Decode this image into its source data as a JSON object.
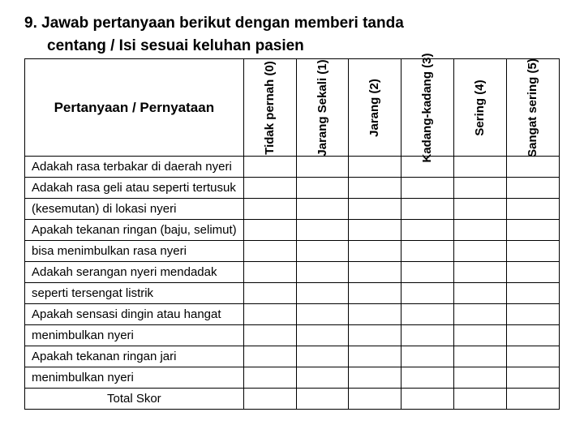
{
  "title": "9.  Jawab pertanyaan berikut dengan memberi tanda",
  "subtitle": "centang / Isi sesuai keluhan pasien",
  "questionHeader": "Pertanyaan / Pernyataan",
  "scales": [
    {
      "label": "Tidak pernah (0)"
    },
    {
      "label": "Jarang Sekali (1)"
    },
    {
      "label": "Jarang (2)"
    },
    {
      "label": "Kadang-kadang (3)"
    },
    {
      "label": "Sering (4)"
    },
    {
      "label": "Sangat sering (5)"
    }
  ],
  "rows": [
    "Adakah rasa terbakar di daerah nyeri",
    "Adakah rasa geli atau seperti tertusuk",
    "(kesemutan) di lokasi nyeri",
    "Apakah tekanan ringan (baju, selimut)",
    "bisa menimbulkan rasa nyeri",
    "Adakah serangan nyeri mendadak",
    "seperti tersengat listrik",
    "Apakah sensasi dingin atau hangat",
    "menimbulkan nyeri",
    "Apakah tekanan ringan jari",
    "menimbulkan nyeri"
  ],
  "totalLabel": "Total Skor",
  "colors": {
    "background": "#ffffff",
    "text": "#000000",
    "border": "#000000"
  }
}
